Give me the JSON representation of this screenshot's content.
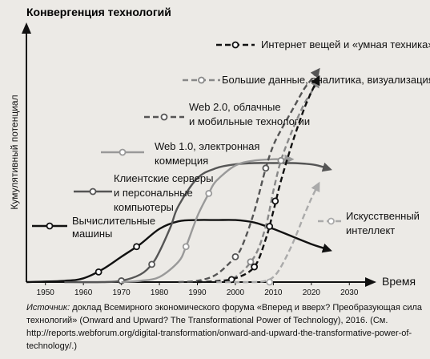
{
  "chart_data": {
    "type": "line",
    "title": "Конвергенция технологий",
    "ylabel": "Кумулятивный потенциал",
    "xlabel": "Время",
    "xlim": [
      1945,
      2035
    ],
    "x_ticks": [
      1950,
      1960,
      1970,
      1980,
      1990,
      2000,
      2010,
      2020,
      2030
    ],
    "ylim": [
      0,
      100
    ],
    "legend": "inline labels",
    "series": [
      {
        "name": "Вычислительные машины",
        "label_lines": [
          "Вычислительные",
          "машины"
        ],
        "style": "solid",
        "color": "#111111",
        "width": 2.4,
        "x": [
          1945,
          1955,
          1960,
          1965,
          1970,
          1975,
          1980,
          1985,
          1990,
          1995,
          2000,
          2005,
          2010,
          2015,
          2020,
          2023,
          2025
        ],
        "y": [
          0,
          0.5,
          1.5,
          5,
          10,
          15,
          21,
          24,
          24.5,
          24.5,
          24.5,
          23.5,
          21,
          18,
          15,
          13.5,
          12.5
        ],
        "markers": [
          [
            1964,
            4
          ],
          [
            1974,
            14
          ]
        ]
      },
      {
        "name": "Клиентские серверы и персональные компьютеры",
        "label_lines": [
          "Клиентские серверы",
          "и персональные",
          "компьютеры"
        ],
        "style": "solid",
        "color": "#555555",
        "width": 2.4,
        "x": [
          1955,
          1965,
          1970,
          1975,
          1978,
          1980,
          1983,
          1985,
          1990,
          1995,
          2000,
          2005,
          2010,
          2015,
          2020,
          2023,
          2025
        ],
        "y": [
          0,
          0,
          0.5,
          3,
          7,
          12,
          22,
          30,
          41,
          45,
          46.5,
          47,
          47,
          47,
          46.5,
          45.5,
          44.5
        ],
        "markers": [
          [
            1970,
            0.5
          ],
          [
            1978,
            7
          ]
        ]
      },
      {
        "name": "Web 1.0, электронная коммерция",
        "label_lines": [
          "Web 1.0, электронная",
          "коммерция"
        ],
        "style": "solid",
        "color": "#999999",
        "width": 2.4,
        "x": [
          1970,
          1975,
          1980,
          1985,
          1987,
          1990,
          1993,
          1995,
          2000,
          2005,
          2010,
          2012,
          2015
        ],
        "y": [
          0,
          0.5,
          2,
          8,
          14,
          26,
          35,
          40,
          46,
          48,
          48.5,
          48.5,
          48.5
        ],
        "markers": [
          [
            1987,
            14
          ],
          [
            1993,
            35
          ]
        ]
      },
      {
        "name": "Web 2.0, облачные и мобильные технологии",
        "label_lines": [
          "Web 2.0, облачные",
          "и мобильные технологии"
        ],
        "style": "dash",
        "color": "#555555",
        "width": 2.4,
        "x": [
          1985,
          1990,
          1995,
          2000,
          2002,
          2005,
          2008,
          2010,
          2012,
          2015,
          2018,
          2020,
          2022
        ],
        "y": [
          0,
          0.5,
          3,
          10,
          15,
          28,
          45,
          54,
          60,
          68,
          76,
          80,
          84
        ],
        "markers": [
          [
            2000,
            10
          ],
          [
            2008,
            45
          ]
        ]
      },
      {
        "name": "Большие данные, аналитика, визуализация",
        "label_lines": [
          "Большие данные, аналитика, визуализация"
        ],
        "style": "dash",
        "color": "#888888",
        "width": 2.4,
        "x": [
          1990,
          1995,
          2000,
          2005,
          2008,
          2010,
          2012,
          2015,
          2018,
          2020,
          2022
        ],
        "y": [
          0,
          0.5,
          2,
          10,
          22,
          36,
          48,
          60,
          70,
          75,
          80
        ],
        "markers": [
          [
            2004,
            8
          ],
          [
            2012,
            48
          ]
        ]
      },
      {
        "name": "Интернет вещей и «умная техника»",
        "label_lines": [
          "Интернет вещей и «умная техника»"
        ],
        "style": "dash",
        "color": "#111111",
        "width": 2.4,
        "x": [
          1990,
          1995,
          2000,
          2005,
          2008,
          2010,
          2012,
          2015,
          2018,
          2020,
          2022
        ],
        "y": [
          0,
          0.3,
          1.5,
          6,
          17,
          28,
          40,
          55,
          68,
          75,
          81
        ],
        "markers": [
          [
            1999,
            1
          ],
          [
            2005,
            6
          ],
          [
            2009,
            22
          ],
          [
            2010.5,
            32
          ]
        ]
      },
      {
        "name": "Искусственный интеллект",
        "label_lines": [
          "Искусственный",
          "интеллект"
        ],
        "style": "dash",
        "color": "#aaaaaa",
        "width": 2.4,
        "x": [
          1995,
          2005,
          2008,
          2010,
          2012,
          2015,
          2018,
          2020,
          2022
        ],
        "y": [
          0,
          0,
          0.5,
          2,
          6,
          15,
          26,
          33,
          39
        ],
        "markers": [
          [
            2009,
            0
          ]
        ]
      }
    ]
  },
  "source": {
    "prefix": "Источник:",
    "text": " доклад Всемирного экономического форума «Вперед и вверх? Преобразующая сила технологий» (Onward and Upward? The Transformational Power of Technology), 2016. (См. http://reports.webforum.org/digital-transformation/onward-and-upward-the-transformative-power-of-technology/.)"
  }
}
